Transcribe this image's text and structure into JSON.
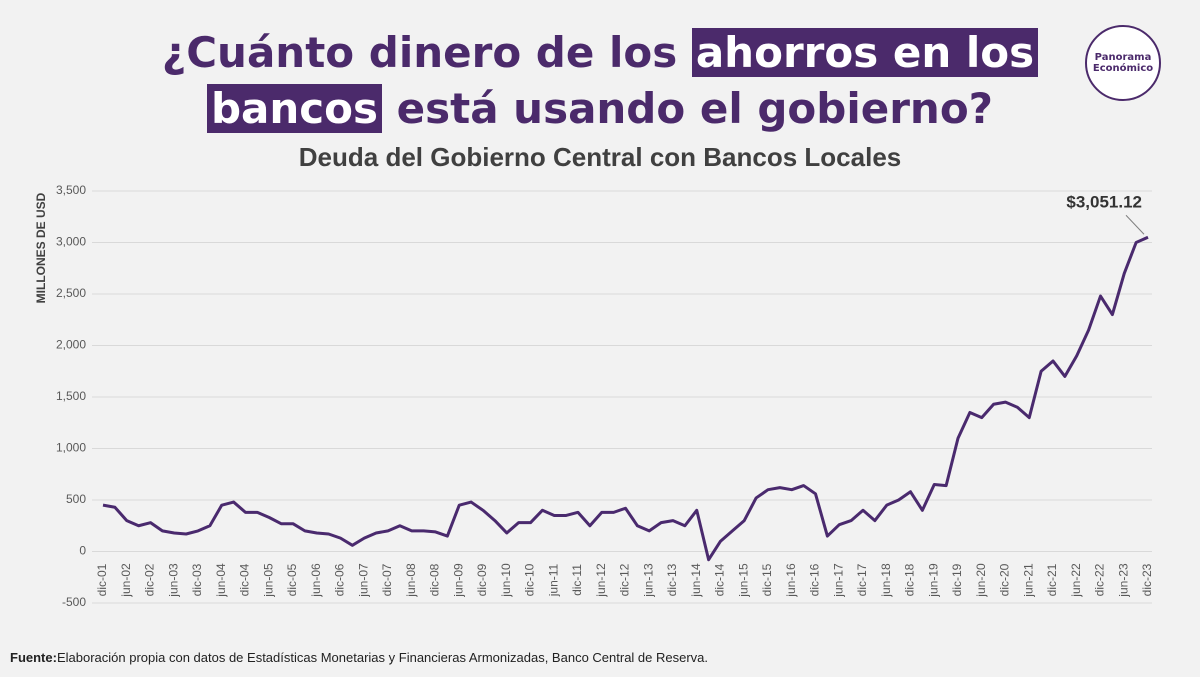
{
  "header": {
    "title_line1": [
      "¿Cuánto dinero de los ",
      "ahorros en los"
    ],
    "title_line2": [
      "bancos",
      " está usando el gobierno?"
    ],
    "logo": [
      "Panorama",
      "Económico"
    ]
  },
  "footer": {
    "label": "Fuente:",
    "text": "Elaboración propia con datos de Estadísticas Monetarias y Financieras Armonizadas, Banco Central de Reserva."
  },
  "chart_data": {
    "type": "line",
    "title": "Deuda del Gobierno Central con Bancos Locales",
    "y_label": "MILLONES DE USD",
    "color": "#4a2a6e",
    "grid": true,
    "ylim": [
      -500,
      3500
    ],
    "yticks": [
      -500,
      0,
      500,
      {
        "value": 1000,
        "label": "1,000"
      },
      {
        "value": 1500,
        "label": "1,500"
      },
      {
        "value": 2000,
        "label": "2,000"
      },
      {
        "value": 2500,
        "label": "2,500"
      },
      {
        "value": 3000,
        "label": "3,000"
      },
      {
        "value": 3500,
        "label": "3,500"
      }
    ],
    "categories": [
      "dic-01",
      null,
      "jun-02",
      null,
      "dic-02",
      null,
      "jun-03",
      null,
      "dic-03",
      null,
      "jun-04",
      null,
      "dic-04",
      null,
      "jun-05",
      null,
      "dic-05",
      null,
      "jun-06",
      null,
      "dic-06",
      null,
      "jun-07",
      null,
      "dic-07",
      null,
      "jun-08",
      null,
      "dic-08",
      null,
      "jun-09",
      null,
      "dic-09",
      null,
      "jun-10",
      null,
      "dic-10",
      null,
      "jun-11",
      null,
      "dic-11",
      null,
      "jun-12",
      null,
      "dic-12",
      null,
      "jun-13",
      null,
      "dic-13",
      null,
      "jun-14",
      null,
      "dic-14",
      null,
      "jun-15",
      null,
      "dic-15",
      null,
      "jun-16",
      null,
      "dic-16",
      null,
      "jun-17",
      null,
      "dic-17",
      null,
      "jun-18",
      null,
      "dic-18",
      null,
      "jun-19",
      null,
      "dic-19",
      null,
      "jun-20",
      null,
      "dic-20",
      null,
      "jun-21",
      null,
      "dic-21",
      null,
      "jun-22",
      null,
      "dic-22",
      null,
      "jun-23",
      null,
      "dic-23"
    ],
    "values": [
      450,
      430,
      300,
      250,
      280,
      200,
      180,
      170,
      200,
      250,
      450,
      480,
      380,
      380,
      330,
      270,
      270,
      200,
      180,
      170,
      130,
      60,
      130,
      180,
      200,
      250,
      200,
      200,
      190,
      150,
      450,
      480,
      400,
      300,
      180,
      280,
      280,
      400,
      350,
      350,
      380,
      250,
      380,
      380,
      420,
      250,
      200,
      280,
      300,
      250,
      400,
      -80,
      100,
      200,
      300,
      520,
      600,
      620,
      600,
      640,
      560,
      150,
      260,
      300,
      400,
      300,
      450,
      500,
      580,
      400,
      650,
      640,
      1100,
      1350,
      1300,
      1430,
      1450,
      1400,
      1300,
      1750,
      1850,
      1700,
      1900,
      2150,
      2480,
      2300,
      2700,
      3000,
      3051.12
    ],
    "value_labels": [
      null,
      null,
      null,
      null,
      null,
      null,
      null,
      null,
      null,
      null,
      null,
      null,
      null,
      null,
      null,
      null,
      null,
      null,
      null,
      null,
      null,
      null,
      null,
      null,
      null,
      null,
      null,
      null,
      null,
      null,
      null,
      null,
      null,
      null,
      null,
      null,
      null,
      null,
      null,
      null,
      null,
      null,
      null,
      null,
      null,
      null,
      null,
      null,
      null,
      null,
      null,
      null,
      null,
      null,
      null,
      null,
      null,
      null,
      null,
      null,
      null,
      null,
      null,
      null,
      null,
      null,
      null,
      null,
      null,
      null,
      null,
      null,
      null,
      null,
      null,
      null,
      null,
      null,
      null,
      null,
      null,
      null,
      null,
      null,
      null,
      null,
      null,
      null,
      "$3,051.12"
    ]
  }
}
